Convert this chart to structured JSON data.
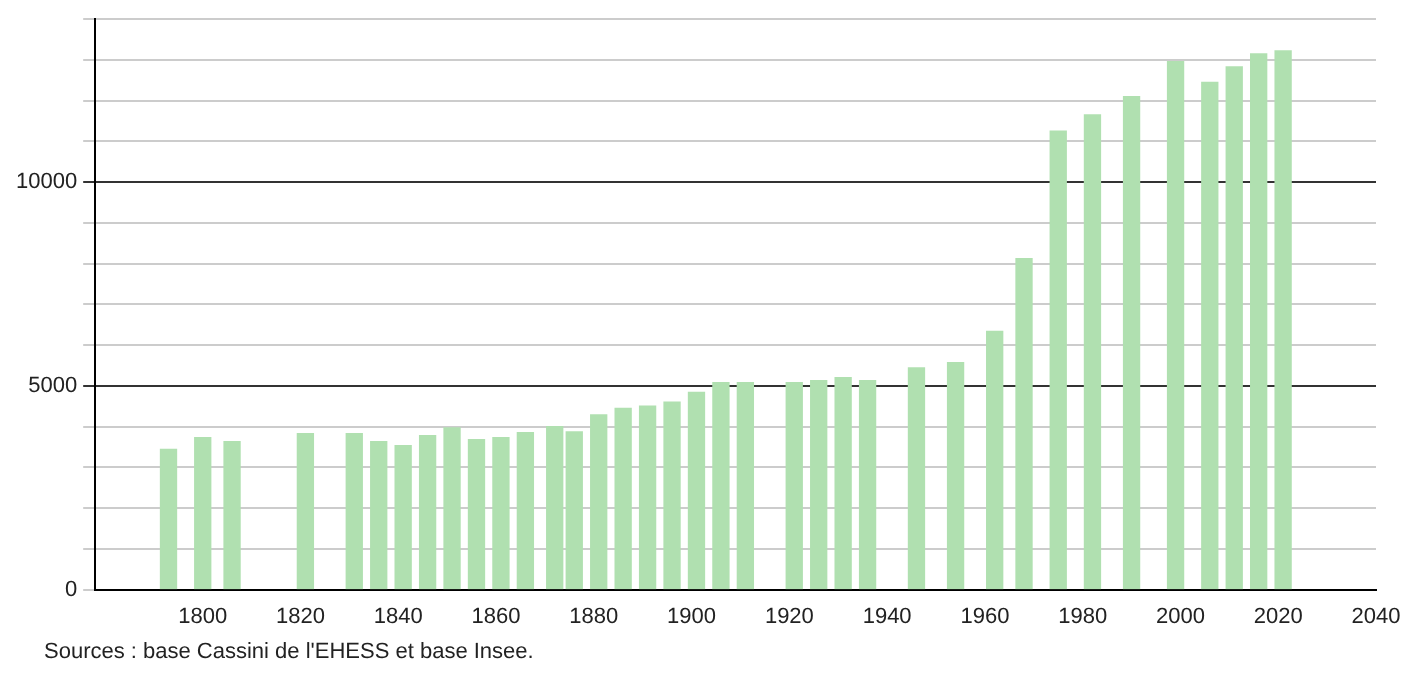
{
  "chart_data": {
    "type": "bar",
    "x": [
      1793,
      1800,
      1806,
      1821,
      1831,
      1836,
      1841,
      1846,
      1851,
      1856,
      1861,
      1866,
      1872,
      1876,
      1881,
      1886,
      1891,
      1896,
      1901,
      1906,
      1911,
      1921,
      1926,
      1931,
      1936,
      1946,
      1954,
      1962,
      1968,
      1975,
      1982,
      1990,
      1999,
      2006,
      2011,
      2016,
      2021
    ],
    "values": [
      3440,
      3730,
      3630,
      3830,
      3830,
      3630,
      3530,
      3780,
      3970,
      3680,
      3730,
      3850,
      4000,
      3870,
      4290,
      4450,
      4500,
      4600,
      4840,
      5080,
      5080,
      5080,
      5130,
      5200,
      5130,
      5440,
      5570,
      6340,
      8120,
      11250,
      11650,
      12100,
      12960,
      12450,
      12830,
      13150,
      13220
    ],
    "color": "#b0e0b0",
    "xlim": [
      1778,
      2040
    ],
    "xticks": [
      1800,
      1820,
      1840,
      1860,
      1880,
      1900,
      1920,
      1940,
      1960,
      1980,
      2000,
      2020,
      2040
    ],
    "ylim": [
      0,
      14000
    ],
    "yticks": [
      0,
      {
        "value": 1000,
        "label": null
      },
      {
        "value": 2000,
        "label": null
      },
      {
        "value": 3000,
        "label": null
      },
      {
        "value": 4000,
        "label": null
      },
      5000,
      {
        "value": 6000,
        "label": null
      },
      {
        "value": 7000,
        "label": null
      },
      {
        "value": 8000,
        "label": null
      },
      {
        "value": 9000,
        "label": null
      },
      10000,
      {
        "value": 11000,
        "label": null
      },
      {
        "value": 12000,
        "label": null
      },
      {
        "value": 13000,
        "label": null
      },
      {
        "value": 14000,
        "label": null
      }
    ],
    "grid": "y",
    "annotations": [
      "Sources : base Cassini de l'EHESS et base Insee."
    ]
  }
}
